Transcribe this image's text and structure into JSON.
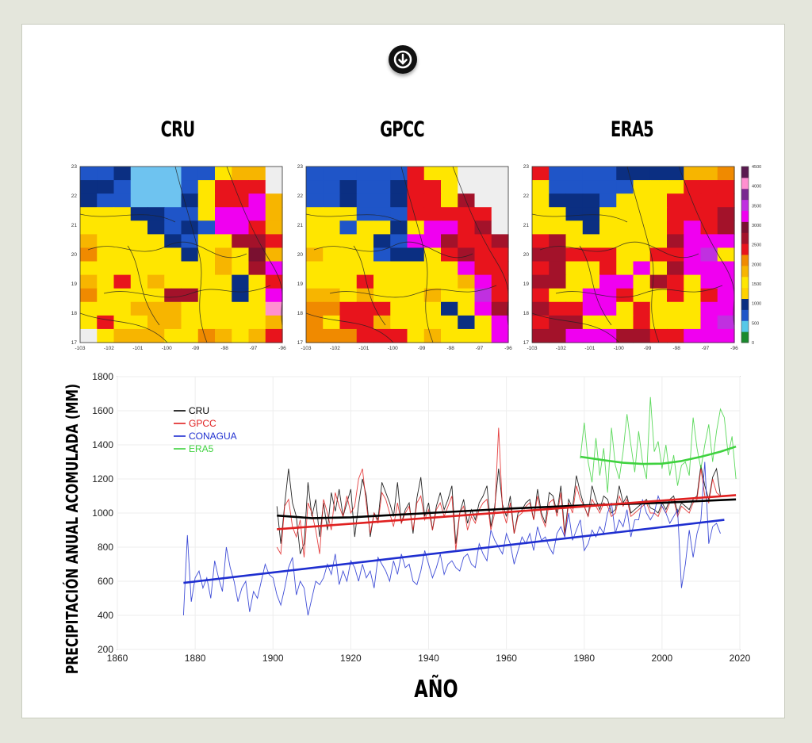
{
  "maps": [
    {
      "title": "CRU"
    },
    {
      "title": "GPCC"
    },
    {
      "title": "ERA5"
    }
  ],
  "map_axes": {
    "x_ticks": [
      "-103",
      "-102",
      "-101",
      "-100",
      "-99",
      "-98",
      "-97",
      "-96"
    ],
    "y_ticks": [
      "23",
      "22",
      "21",
      "20",
      "19",
      "18",
      "17"
    ]
  },
  "colorbar": {
    "ticks": [
      "4000",
      "3500",
      "3000",
      "2500",
      "2000",
      "1500",
      "1000",
      "500",
      "0"
    ],
    "ticks_top": "4500",
    "colors": [
      "#1a8a2e",
      "#56c8e8",
      "#1f55c8",
      "#0b2f82",
      "#ffd200",
      "#ffe600",
      "#f7b500",
      "#f08a00",
      "#e8141c",
      "#a3122a",
      "#7a1030",
      "#f000f0",
      "#c030e0",
      "#7a2a90",
      "#ff8fd0",
      "#5a1a50"
    ]
  },
  "chart_data": {
    "type": "line",
    "title": "",
    "xlabel": "AÑO",
    "ylabel": "PRECIPITACIÓN ANUAL ACOMULADA (MM)",
    "xlim": [
      1860,
      2020
    ],
    "ylim": [
      200,
      1800
    ],
    "x_ticks": [
      1860,
      1880,
      1900,
      1920,
      1940,
      1960,
      1980,
      2000,
      2020
    ],
    "y_ticks": [
      200,
      400,
      600,
      800,
      1000,
      1200,
      1400,
      1600,
      1800
    ],
    "legend_position": "top-left",
    "series": [
      {
        "name": "CRU",
        "color": "#000000",
        "start": 1901,
        "values": [
          1040,
          820,
          1050,
          1260,
          1060,
          980,
          760,
          820,
          1180,
          980,
          1080,
          860,
          1060,
          900,
          1120,
          1010,
          1140,
          980,
          1060,
          1140,
          860,
          1050,
          1200,
          1100,
          860,
          1000,
          960,
          1180,
          1120,
          1060,
          980,
          1180,
          940,
          1020,
          1060,
          880,
          1090,
          1210,
          980,
          1060,
          900,
          1040,
          1120,
          1020,
          1080,
          1160,
          820,
          1000,
          1080,
          940,
          1020,
          960,
          1060,
          1100,
          1160,
          920,
          1040,
          1260,
          1050,
          980,
          1100,
          880,
          1000,
          1020,
          1060,
          1080,
          960,
          1140,
          1000,
          940,
          1120,
          1100,
          1000,
          1160,
          880,
          1080,
          1030,
          1220,
          1120,
          1040,
          980,
          1160,
          1080,
          1020,
          1100,
          1080,
          1000,
          1020,
          1160,
          1060,
          1100,
          1000,
          1020,
          1040,
          1060,
          1080,
          1030,
          1020,
          1000,
          1060,
          1020,
          1080,
          1100,
          1000,
          1060,
          1040,
          1020,
          1080,
          1100,
          1280,
          1160,
          1080,
          1210,
          1260,
          1100
        ]
      },
      {
        "name": "GPCC",
        "color": "#e02020",
        "start": 1901,
        "values": [
          800,
          760,
          1040,
          1080,
          920,
          860,
          960,
          740,
          1060,
          1000,
          900,
          760,
          1080,
          1000,
          900,
          1120,
          1040,
          980,
          1100,
          1000,
          1040,
          1200,
          1260,
          1050,
          880,
          1000,
          940,
          1120,
          1080,
          1000,
          920,
          1060,
          940,
          1000,
          1040,
          900,
          1060,
          1100,
          960,
          1020,
          900,
          1020,
          1060,
          980,
          1040,
          1100,
          780,
          1000,
          1040,
          900,
          980,
          940,
          1020,
          1060,
          1080,
          900,
          1000,
          1500,
          1020,
          940,
          1060,
          880,
          980,
          1000,
          1040,
          1060,
          960,
          1100,
          980,
          920,
          1060,
          1080,
          980,
          1120,
          860,
          1060,
          1000,
          1160,
          1080,
          1040,
          980,
          1080,
          1040,
          1000,
          1060,
          1040,
          980,
          1000,
          1100,
          1040,
          1080,
          980,
          1000,
          1020,
          1040,
          1060,
          1000,
          1000,
          980,
          1040,
          1000,
          1060,
          1080,
          980,
          1040,
          1020,
          1000,
          1060,
          1080,
          1260,
          1100,
          1060,
          1200,
          1120,
          1100
        ]
      },
      {
        "name": "CONAGUA",
        "color": "#1f2fd0",
        "start": 1877,
        "values": [
          400,
          870,
          480,
          620,
          660,
          560,
          620,
          500,
          720,
          620,
          540,
          800,
          680,
          600,
          480,
          560,
          600,
          420,
          540,
          500,
          600,
          700,
          640,
          620,
          520,
          460,
          560,
          680,
          740,
          520,
          600,
          560,
          400,
          500,
          600,
          580,
          620,
          700,
          640,
          760,
          580,
          660,
          600,
          720,
          680,
          600,
          700,
          620,
          660,
          560,
          740,
          700,
          660,
          600,
          720,
          640,
          760,
          680,
          700,
          600,
          580,
          660,
          780,
          700,
          620,
          680,
          760,
          640,
          700,
          720,
          680,
          660,
          740,
          760,
          700,
          680,
          820,
          760,
          720,
          900,
          840,
          800,
          760,
          880,
          820,
          700,
          780,
          860,
          820,
          880,
          780,
          920,
          840,
          860,
          800,
          760,
          880,
          920,
          860,
          1000,
          840,
          900,
          960,
          780,
          820,
          900,
          860,
          920,
          880,
          1000,
          1060,
          880,
          960,
          920,
          1020,
          860,
          960,
          960,
          1080,
          1000,
          960,
          1000,
          1100,
          1040,
          1000,
          940,
          980,
          1020,
          560,
          700,
          900,
          740,
          880,
          960,
          1300,
          820,
          920,
          940,
          880
        ]
      },
      {
        "name": "ERA5",
        "color": "#3fd23f",
        "start": 1979,
        "values": [
          1320,
          1530,
          1300,
          1180,
          1440,
          1220,
          1380,
          1120,
          1500,
          1280,
          1200,
          1360,
          1580,
          1400,
          1240,
          1480,
          1300,
          1200,
          1680,
          1360,
          1420,
          1260,
          1400,
          1220,
          1340,
          1160,
          1280,
          1300,
          1220,
          1560,
          1380,
          1260,
          1400,
          1520,
          1300,
          1480,
          1610,
          1560,
          1340,
          1450,
          1200
        ]
      }
    ],
    "trend_lines": [
      {
        "series": "CRU",
        "color": "#000000",
        "points": [
          [
            1901,
            985
          ],
          [
            1910,
            970
          ],
          [
            1920,
            975
          ],
          [
            1940,
            1000
          ],
          [
            1960,
            1025
          ],
          [
            1980,
            1045
          ],
          [
            2000,
            1060
          ],
          [
            2019,
            1080
          ]
        ]
      },
      {
        "series": "GPCC",
        "color": "#e02020",
        "points": [
          [
            1901,
            905
          ],
          [
            2019,
            1105
          ]
        ]
      },
      {
        "series": "CONAGUA",
        "color": "#1f2fd0",
        "points": [
          [
            1877,
            590
          ],
          [
            2016,
            960
          ]
        ]
      },
      {
        "series": "ERA5",
        "color": "#3fd23f",
        "points": [
          [
            1979,
            1330
          ],
          [
            1985,
            1310
          ],
          [
            1990,
            1295
          ],
          [
            1995,
            1288
          ],
          [
            2000,
            1290
          ],
          [
            2005,
            1305
          ],
          [
            2010,
            1330
          ],
          [
            2015,
            1360
          ],
          [
            2019,
            1390
          ]
        ]
      }
    ]
  }
}
